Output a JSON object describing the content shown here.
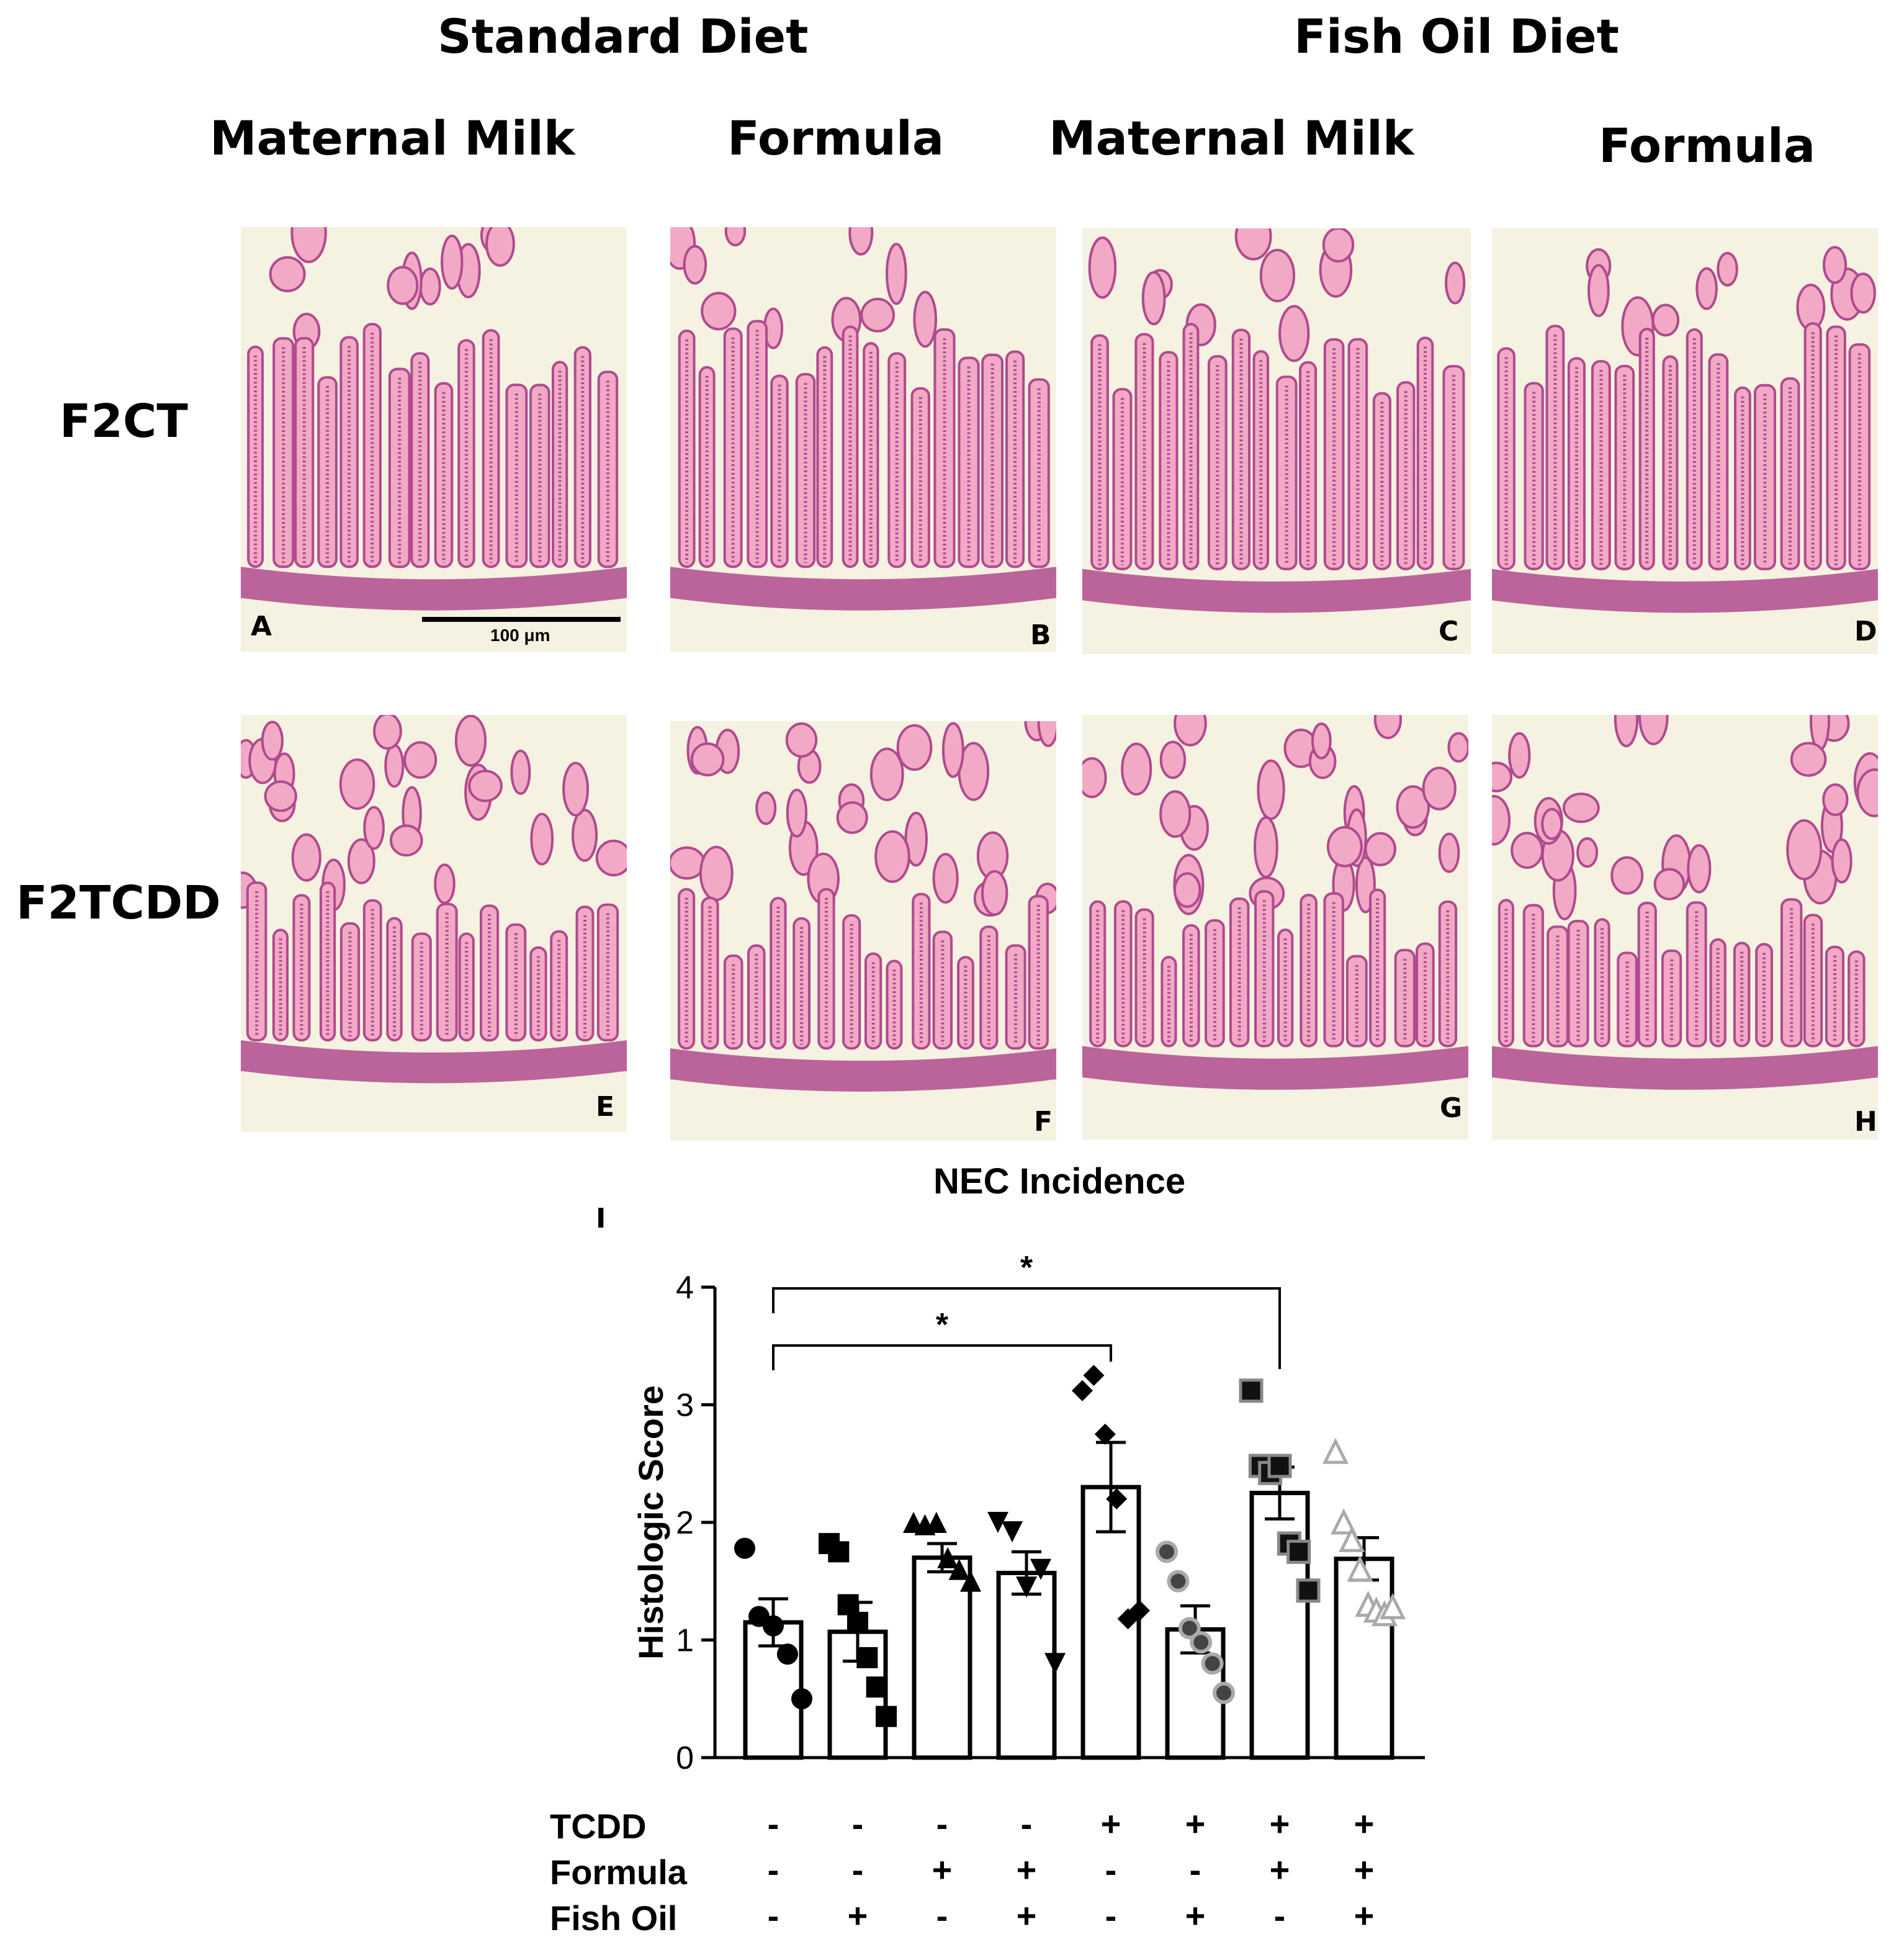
{
  "header": {
    "diet_standard": "Standard Diet",
    "diet_fishoil": "Fish Oil Diet",
    "groups": [
      "Maternal Milk",
      "Formula",
      "Maternal Milk",
      "Formula"
    ],
    "rows": [
      "F2CT",
      "F2TCDD"
    ]
  },
  "panels": [
    {
      "letter": "A"
    },
    {
      "letter": "B"
    },
    {
      "letter": "C"
    },
    {
      "letter": "D"
    },
    {
      "letter": "E"
    },
    {
      "letter": "F"
    },
    {
      "letter": "G"
    },
    {
      "letter": "H"
    }
  ],
  "scale_bar": {
    "label": "100 μm"
  },
  "colors": {
    "tissue_light": "#f2a9c6",
    "tissue_dark": "#b04a8e",
    "background": "#f5f2e1"
  },
  "chart_data": {
    "type": "bar",
    "panel_letter": "I",
    "title": "NEC Incidence",
    "ylabel": "Histologic Score",
    "ylim": [
      0,
      4
    ],
    "yticks": [
      "0",
      "1",
      "2",
      "3",
      "4"
    ],
    "bars": [
      {
        "mean": 1.15,
        "sem": 0.2,
        "marker": "circle",
        "fill": "#000000",
        "points": [
          1.78,
          1.2,
          1.12,
          0.88,
          0.5
        ]
      },
      {
        "mean": 1.07,
        "sem": 0.25,
        "marker": "square",
        "fill": "#000000",
        "points": [
          1.82,
          1.75,
          1.3,
          1.15,
          0.85,
          0.6,
          0.35
        ]
      },
      {
        "mean": 1.7,
        "sem": 0.12,
        "marker": "triangle-up",
        "fill": "#000000",
        "points": [
          2.0,
          1.98,
          2.0,
          1.7,
          1.6,
          1.5
        ]
      },
      {
        "mean": 1.57,
        "sem": 0.18,
        "marker": "triangle-down",
        "fill": "#000000",
        "points": [
          2.0,
          1.92,
          1.45,
          1.6,
          0.8
        ]
      },
      {
        "mean": 2.3,
        "sem": 0.38,
        "marker": "diamond",
        "fill": "#000000",
        "points": [
          3.12,
          3.25,
          2.75,
          2.2,
          1.18,
          1.25
        ]
      },
      {
        "mean": 1.09,
        "sem": 0.2,
        "marker": "circle-gray",
        "fill": "#555555",
        "points": [
          1.75,
          1.5,
          1.1,
          0.98,
          0.8,
          0.55
        ]
      },
      {
        "mean": 2.25,
        "sem": 0.22,
        "marker": "square-gray",
        "fill": "#000000",
        "points": [
          3.12,
          2.48,
          2.42,
          2.48,
          1.82,
          1.75,
          1.42
        ]
      },
      {
        "mean": 1.69,
        "sem": 0.18,
        "marker": "triangle-light",
        "fill": "#ffffff",
        "points": [
          2.6,
          2.0,
          1.85,
          1.6,
          1.3,
          1.25,
          1.22,
          1.28
        ]
      }
    ],
    "significance": [
      {
        "from": 0,
        "to": 4,
        "label": "*"
      },
      {
        "from": 0,
        "to": 6,
        "label": "*"
      }
    ],
    "factors": [
      {
        "name": "TCDD",
        "values": [
          "-",
          "-",
          "-",
          "-",
          "+",
          "+",
          "+",
          "+"
        ]
      },
      {
        "name": "Formula",
        "values": [
          "-",
          "-",
          "+",
          "+",
          "-",
          "-",
          "+",
          "+"
        ]
      },
      {
        "name": "Fish Oil",
        "values": [
          "-",
          "+",
          "-",
          "+",
          "-",
          "+",
          "-",
          "+"
        ]
      }
    ]
  }
}
